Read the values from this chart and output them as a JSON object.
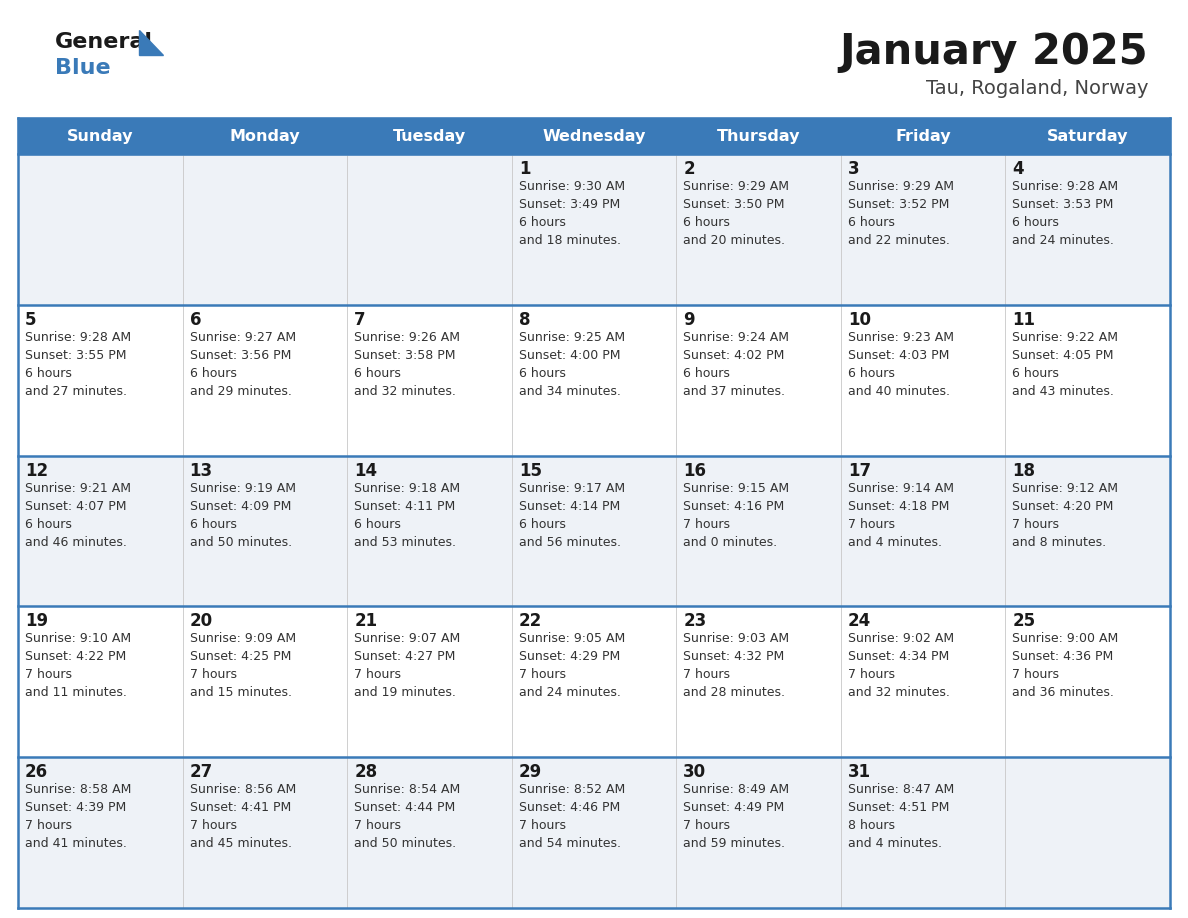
{
  "title": "January 2025",
  "subtitle": "Tau, Rogaland, Norway",
  "days_of_week": [
    "Sunday",
    "Monday",
    "Tuesday",
    "Wednesday",
    "Thursday",
    "Friday",
    "Saturday"
  ],
  "header_bg": "#3a7ab8",
  "header_text": "#ffffff",
  "cell_bg_odd": "#eef2f7",
  "cell_bg_even": "#ffffff",
  "divider_color": "#3a7ab8",
  "text_color": "#333333",
  "calendar_data": [
    [
      null,
      null,
      null,
      {
        "day": 1,
        "sunrise": "9:30 AM",
        "sunset": "3:49 PM",
        "daylight": "6 hours\nand 18 minutes."
      },
      {
        "day": 2,
        "sunrise": "9:29 AM",
        "sunset": "3:50 PM",
        "daylight": "6 hours\nand 20 minutes."
      },
      {
        "day": 3,
        "sunrise": "9:29 AM",
        "sunset": "3:52 PM",
        "daylight": "6 hours\nand 22 minutes."
      },
      {
        "day": 4,
        "sunrise": "9:28 AM",
        "sunset": "3:53 PM",
        "daylight": "6 hours\nand 24 minutes."
      }
    ],
    [
      {
        "day": 5,
        "sunrise": "9:28 AM",
        "sunset": "3:55 PM",
        "daylight": "6 hours\nand 27 minutes."
      },
      {
        "day": 6,
        "sunrise": "9:27 AM",
        "sunset": "3:56 PM",
        "daylight": "6 hours\nand 29 minutes."
      },
      {
        "day": 7,
        "sunrise": "9:26 AM",
        "sunset": "3:58 PM",
        "daylight": "6 hours\nand 32 minutes."
      },
      {
        "day": 8,
        "sunrise": "9:25 AM",
        "sunset": "4:00 PM",
        "daylight": "6 hours\nand 34 minutes."
      },
      {
        "day": 9,
        "sunrise": "9:24 AM",
        "sunset": "4:02 PM",
        "daylight": "6 hours\nand 37 minutes."
      },
      {
        "day": 10,
        "sunrise": "9:23 AM",
        "sunset": "4:03 PM",
        "daylight": "6 hours\nand 40 minutes."
      },
      {
        "day": 11,
        "sunrise": "9:22 AM",
        "sunset": "4:05 PM",
        "daylight": "6 hours\nand 43 minutes."
      }
    ],
    [
      {
        "day": 12,
        "sunrise": "9:21 AM",
        "sunset": "4:07 PM",
        "daylight": "6 hours\nand 46 minutes."
      },
      {
        "day": 13,
        "sunrise": "9:19 AM",
        "sunset": "4:09 PM",
        "daylight": "6 hours\nand 50 minutes."
      },
      {
        "day": 14,
        "sunrise": "9:18 AM",
        "sunset": "4:11 PM",
        "daylight": "6 hours\nand 53 minutes."
      },
      {
        "day": 15,
        "sunrise": "9:17 AM",
        "sunset": "4:14 PM",
        "daylight": "6 hours\nand 56 minutes."
      },
      {
        "day": 16,
        "sunrise": "9:15 AM",
        "sunset": "4:16 PM",
        "daylight": "7 hours\nand 0 minutes."
      },
      {
        "day": 17,
        "sunrise": "9:14 AM",
        "sunset": "4:18 PM",
        "daylight": "7 hours\nand 4 minutes."
      },
      {
        "day": 18,
        "sunrise": "9:12 AM",
        "sunset": "4:20 PM",
        "daylight": "7 hours\nand 8 minutes."
      }
    ],
    [
      {
        "day": 19,
        "sunrise": "9:10 AM",
        "sunset": "4:22 PM",
        "daylight": "7 hours\nand 11 minutes."
      },
      {
        "day": 20,
        "sunrise": "9:09 AM",
        "sunset": "4:25 PM",
        "daylight": "7 hours\nand 15 minutes."
      },
      {
        "day": 21,
        "sunrise": "9:07 AM",
        "sunset": "4:27 PM",
        "daylight": "7 hours\nand 19 minutes."
      },
      {
        "day": 22,
        "sunrise": "9:05 AM",
        "sunset": "4:29 PM",
        "daylight": "7 hours\nand 24 minutes."
      },
      {
        "day": 23,
        "sunrise": "9:03 AM",
        "sunset": "4:32 PM",
        "daylight": "7 hours\nand 28 minutes."
      },
      {
        "day": 24,
        "sunrise": "9:02 AM",
        "sunset": "4:34 PM",
        "daylight": "7 hours\nand 32 minutes."
      },
      {
        "day": 25,
        "sunrise": "9:00 AM",
        "sunset": "4:36 PM",
        "daylight": "7 hours\nand 36 minutes."
      }
    ],
    [
      {
        "day": 26,
        "sunrise": "8:58 AM",
        "sunset": "4:39 PM",
        "daylight": "7 hours\nand 41 minutes."
      },
      {
        "day": 27,
        "sunrise": "8:56 AM",
        "sunset": "4:41 PM",
        "daylight": "7 hours\nand 45 minutes."
      },
      {
        "day": 28,
        "sunrise": "8:54 AM",
        "sunset": "4:44 PM",
        "daylight": "7 hours\nand 50 minutes."
      },
      {
        "day": 29,
        "sunrise": "8:52 AM",
        "sunset": "4:46 PM",
        "daylight": "7 hours\nand 54 minutes."
      },
      {
        "day": 30,
        "sunrise": "8:49 AM",
        "sunset": "4:49 PM",
        "daylight": "7 hours\nand 59 minutes."
      },
      {
        "day": 31,
        "sunrise": "8:47 AM",
        "sunset": "4:51 PM",
        "daylight": "8 hours\nand 4 minutes."
      },
      null
    ]
  ],
  "figwidth": 11.88,
  "figheight": 9.18,
  "dpi": 100
}
